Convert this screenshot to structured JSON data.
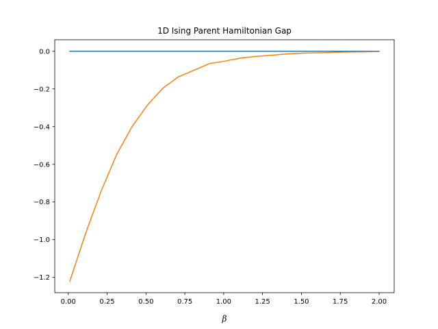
{
  "chart_data": {
    "type": "line",
    "title": "1D Ising Parent Hamiltonian Gap",
    "xlabel": "β",
    "ylabel": "",
    "xlim": [
      -0.087,
      2.097
    ],
    "ylim": [
      -1.281,
      0.061
    ],
    "xticks": [
      0.0,
      0.25,
      0.5,
      0.75,
      1.0,
      1.25,
      1.5,
      1.75,
      2.0
    ],
    "xtick_labels": [
      "0.00",
      "0.25",
      "0.50",
      "0.75",
      "1.00",
      "1.25",
      "1.50",
      "1.75",
      "2.00"
    ],
    "yticks": [
      -1.2,
      -1.0,
      -0.8,
      -0.6,
      -0.4,
      -0.2,
      0.0
    ],
    "ytick_labels": [
      "−1.2",
      "−1.0",
      "−0.8",
      "−0.6",
      "−0.4",
      "−0.2",
      "0.0"
    ],
    "grid": false,
    "legend": "none",
    "series": [
      {
        "color": "#1f77b4",
        "x": [
          0.01,
          0.11,
          0.21,
          0.31,
          0.41,
          0.51,
          0.61,
          0.71,
          0.81,
          0.91,
          1.01,
          1.11,
          1.21,
          1.31,
          1.41,
          1.51,
          1.61,
          1.71,
          1.81,
          1.91,
          2.0
        ],
        "y": [
          0,
          0,
          0,
          0,
          0,
          0,
          0,
          0,
          0,
          0,
          0,
          0,
          0,
          0,
          0,
          0,
          0,
          0,
          0,
          0,
          0
        ]
      },
      {
        "color": "#ff7f0e",
        "x": [
          0.01,
          0.11,
          0.21,
          0.31,
          0.41,
          0.51,
          0.61,
          0.71,
          0.81,
          0.91,
          1.01,
          1.11,
          1.21,
          1.31,
          1.41,
          1.51,
          1.61,
          1.71,
          1.81,
          1.91,
          2.0
        ],
        "y": [
          -1.22,
          -0.97,
          -0.745,
          -0.55,
          -0.4,
          -0.285,
          -0.195,
          -0.135,
          -0.1,
          -0.065,
          -0.052,
          -0.036,
          -0.027,
          -0.021,
          -0.014,
          -0.01,
          -0.008,
          -0.006,
          -0.004,
          -0.003,
          -0.002
        ]
      }
    ]
  }
}
